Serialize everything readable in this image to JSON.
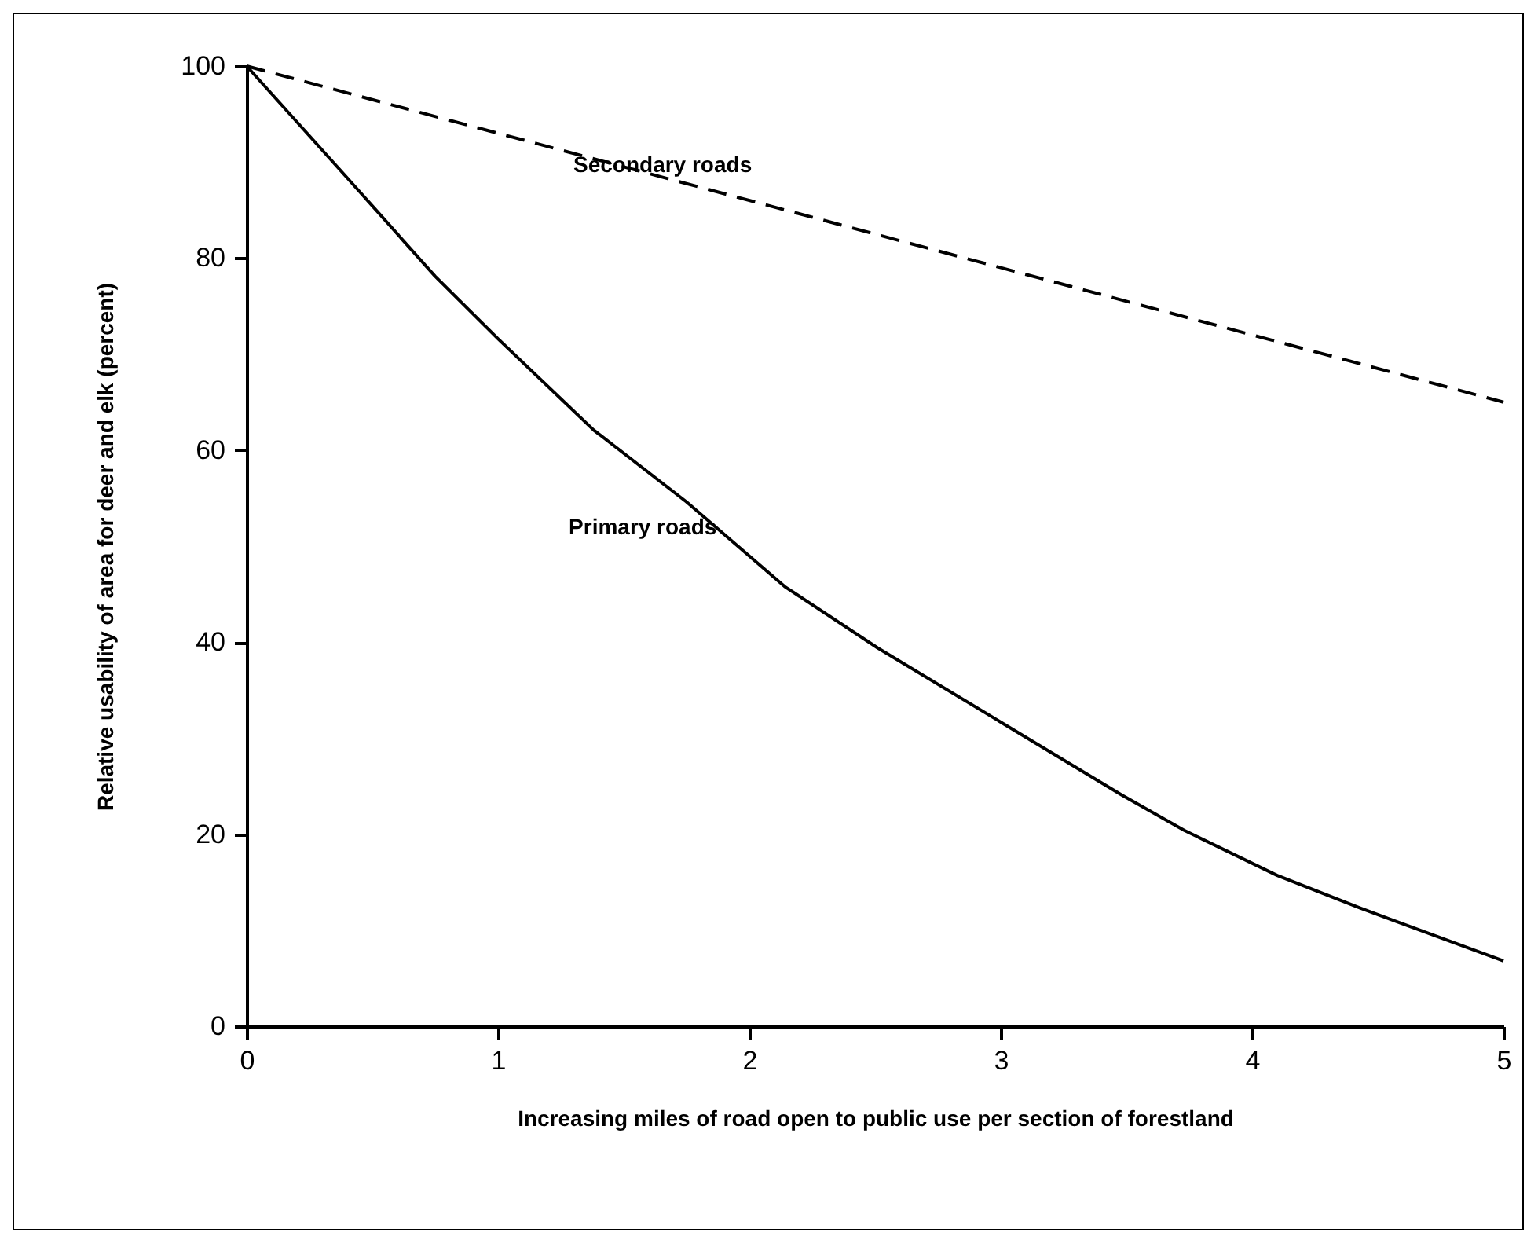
{
  "chart_data": {
    "type": "line",
    "xlabel": "Increasing miles of road open to public use per section of forestland",
    "ylabel": "Relative usability of area for deer and elk (percent)",
    "xlim": [
      0,
      5
    ],
    "xticks": [
      0,
      1,
      2,
      3,
      4,
      5
    ],
    "ylim": [
      0,
      100
    ],
    "yticks": [
      0,
      20,
      40,
      60,
      80,
      100
    ],
    "grid": false,
    "marker": "none",
    "series": [
      {
        "name": "Primary roads",
        "color": "#000000",
        "line_style": "solid",
        "x": [
          0,
          0.46,
          0.75,
          1.0,
          1.38,
          1.75,
          2.14,
          2.51,
          3.48,
          3.73,
          4.1,
          4.43,
          5
        ],
        "values": [
          100,
          86.6,
          78.1,
          71.6,
          62.1,
          54.6,
          45.8,
          39.4,
          24.1,
          20.4,
          15.7,
          12.3,
          6.8
        ]
      },
      {
        "name": "Secondary roads",
        "color": "#000000",
        "line_style": "dashed",
        "x": [
          0,
          5
        ],
        "values": [
          100,
          65
        ]
      }
    ]
  }
}
